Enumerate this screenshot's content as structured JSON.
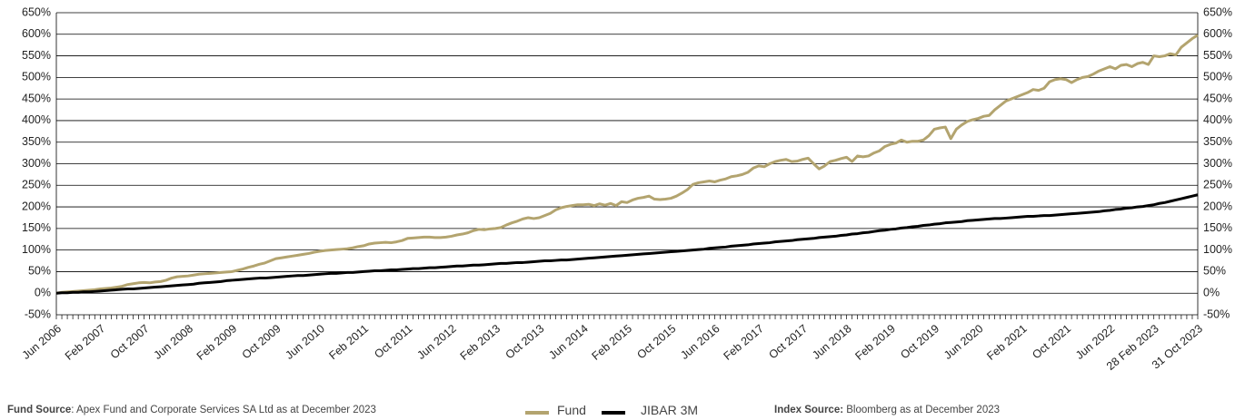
{
  "chart_data": {
    "type": "line",
    "categories": [
      "Jun 2006",
      null,
      null,
      null,
      null,
      null,
      null,
      null,
      "Feb 2007",
      null,
      null,
      null,
      null,
      null,
      null,
      null,
      "Oct 2007",
      null,
      null,
      null,
      null,
      null,
      null,
      null,
      "Jun 2008",
      null,
      null,
      null,
      null,
      null,
      null,
      null,
      "Feb 2009",
      null,
      null,
      null,
      null,
      null,
      null,
      null,
      "Oct 2009",
      null,
      null,
      null,
      null,
      null,
      null,
      null,
      "Jun 2010",
      null,
      null,
      null,
      null,
      null,
      null,
      null,
      "Feb 2011",
      null,
      null,
      null,
      null,
      null,
      null,
      null,
      "Oct 2011",
      null,
      null,
      null,
      null,
      null,
      null,
      null,
      "Jun 2012",
      null,
      null,
      null,
      null,
      null,
      null,
      null,
      "Feb 2013",
      null,
      null,
      null,
      null,
      null,
      null,
      null,
      "Oct 2013",
      null,
      null,
      null,
      null,
      null,
      null,
      null,
      "Jun 2014",
      null,
      null,
      null,
      null,
      null,
      null,
      null,
      "Feb 2015",
      null,
      null,
      null,
      null,
      null,
      null,
      null,
      "Oct 2015",
      null,
      null,
      null,
      null,
      null,
      null,
      null,
      "Jun 2016",
      null,
      null,
      null,
      null,
      null,
      null,
      null,
      "Feb 2017",
      null,
      null,
      null,
      null,
      null,
      null,
      null,
      "Oct 2017",
      null,
      null,
      null,
      null,
      null,
      null,
      null,
      "Jun 2018",
      null,
      null,
      null,
      null,
      null,
      null,
      null,
      "Feb 2019",
      null,
      null,
      null,
      null,
      null,
      null,
      null,
      "Oct 2019",
      null,
      null,
      null,
      null,
      null,
      null,
      null,
      "Jun 2020",
      null,
      null,
      null,
      null,
      null,
      null,
      null,
      "Feb 2021",
      null,
      null,
      null,
      null,
      null,
      null,
      null,
      "Oct 2021",
      null,
      null,
      null,
      null,
      null,
      null,
      null,
      "Jun 2022",
      null,
      null,
      null,
      null,
      null,
      null,
      null,
      "28 Feb 2023",
      null,
      null,
      null,
      null,
      null,
      null,
      null,
      "31 Oct 2023"
    ],
    "series": [
      {
        "name": "Fund",
        "color": "#b3a46f",
        "values": [
          0,
          2,
          3,
          4,
          5,
          6,
          7,
          8,
          10,
          11,
          12,
          14,
          16,
          20,
          22,
          24,
          25,
          24,
          26,
          27,
          30,
          35,
          38,
          39,
          40,
          42,
          44,
          45,
          46,
          47,
          48,
          49,
          50,
          53,
          56,
          60,
          63,
          67,
          70,
          75,
          80,
          82,
          84,
          86,
          88,
          90,
          92,
          95,
          97,
          99,
          100,
          101,
          102,
          103,
          105,
          108,
          110,
          114,
          116,
          117,
          118,
          117,
          119,
          122,
          127,
          128,
          129,
          130,
          130,
          129,
          129,
          130,
          132,
          135,
          137,
          140,
          145,
          148,
          147,
          149,
          150,
          152,
          158,
          163,
          167,
          172,
          175,
          173,
          175,
          180,
          185,
          193,
          198,
          201,
          203,
          205,
          205,
          206,
          203,
          207,
          204,
          208,
          203,
          212,
          210,
          216,
          220,
          222,
          225,
          218,
          217,
          218,
          220,
          225,
          232,
          240,
          252,
          256,
          258,
          260,
          258,
          262,
          265,
          270,
          272,
          275,
          280,
          290,
          295,
          293,
          300,
          305,
          308,
          310,
          305,
          306,
          310,
          313,
          300,
          288,
          295,
          305,
          308,
          312,
          315,
          305,
          318,
          316,
          318,
          325,
          330,
          340,
          345,
          348,
          355,
          350,
          352,
          352,
          355,
          365,
          380,
          383,
          385,
          358,
          380,
          390,
          398,
          402,
          405,
          410,
          412,
          425,
          435,
          445,
          450,
          455,
          460,
          465,
          472,
          470,
          475,
          490,
          495,
          497,
          495,
          488,
          495,
          500,
          502,
          508,
          515,
          520,
          525,
          520,
          528,
          530,
          525,
          532,
          535,
          530,
          550,
          548,
          550,
          555,
          552,
          570,
          580,
          590,
          598
        ]
      },
      {
        "name": "JIBAR 3M",
        "color": "#000000",
        "values": [
          0,
          1,
          1,
          2,
          2,
          3,
          3,
          4,
          5,
          6,
          7,
          8,
          9,
          10,
          10,
          11,
          12,
          13,
          14,
          15,
          16,
          17,
          18,
          19,
          20,
          21,
          23,
          24,
          25,
          26,
          27,
          29,
          30,
          31,
          32,
          33,
          34,
          35,
          35,
          36,
          37,
          38,
          39,
          40,
          41,
          41,
          42,
          43,
          44,
          45,
          46,
          46,
          47,
          48,
          48,
          49,
          50,
          51,
          52,
          52,
          53,
          54,
          54,
          55,
          56,
          57,
          57,
          58,
          59,
          59,
          60,
          61,
          62,
          63,
          63,
          64,
          65,
          65,
          66,
          67,
          68,
          69,
          69,
          70,
          71,
          71,
          72,
          73,
          74,
          75,
          75,
          76,
          77,
          77,
          78,
          79,
          80,
          81,
          82,
          83,
          84,
          85,
          86,
          87,
          88,
          89,
          90,
          91,
          92,
          93,
          94,
          95,
          96,
          97,
          98,
          99,
          100,
          101,
          102,
          104,
          105,
          106,
          107,
          109,
          110,
          111,
          112,
          114,
          115,
          116,
          117,
          119,
          120,
          121,
          122,
          124,
          125,
          126,
          127,
          129,
          130,
          131,
          132,
          134,
          135,
          137,
          138,
          140,
          141,
          143,
          145,
          146,
          148,
          149,
          151,
          152,
          154,
          155,
          157,
          158,
          160,
          161,
          163,
          164,
          165,
          166,
          168,
          169,
          170,
          171,
          172,
          173,
          173,
          174,
          175,
          176,
          177,
          178,
          178,
          179,
          180,
          180,
          181,
          182,
          183,
          184,
          185,
          186,
          187,
          188,
          189,
          191,
          192,
          194,
          195,
          197,
          198,
          200,
          201,
          203,
          205,
          208,
          210,
          213,
          216,
          219,
          222,
          225,
          228
        ]
      }
    ],
    "ylim": [
      -50,
      650
    ],
    "yticks": [
      {
        "value": -50,
        "label": "-50%"
      },
      {
        "value": 0,
        "label": "0%"
      },
      {
        "value": 50,
        "label": "50%"
      },
      {
        "value": 100,
        "label": "100%"
      },
      {
        "value": 150,
        "label": "150%"
      },
      {
        "value": 200,
        "label": "200%"
      },
      {
        "value": 250,
        "label": "250%"
      },
      {
        "value": 300,
        "label": "300%"
      },
      {
        "value": 350,
        "label": "350%"
      },
      {
        "value": 400,
        "label": "400%"
      },
      {
        "value": 450,
        "label": "450%"
      },
      {
        "value": 500,
        "label": "500%"
      },
      {
        "value": 550,
        "label": "550%"
      },
      {
        "value": 600,
        "label": "600%"
      },
      {
        "value": 650,
        "label": "650%"
      }
    ],
    "y2lim": [
      -50,
      650
    ],
    "y2ticks": [
      {
        "value": -50,
        "label": "-50%"
      },
      {
        "value": 0,
        "label": "0%"
      },
      {
        "value": 50,
        "label": "50%"
      },
      {
        "value": 100,
        "label": "100%"
      },
      {
        "value": 150,
        "label": "150%"
      },
      {
        "value": 200,
        "label": "200%"
      },
      {
        "value": 250,
        "label": "250%"
      },
      {
        "value": 300,
        "label": "300%"
      },
      {
        "value": 350,
        "label": "350%"
      },
      {
        "value": 400,
        "label": "400%"
      },
      {
        "value": 450,
        "label": "450%"
      },
      {
        "value": 500,
        "label": "500%"
      },
      {
        "value": 550,
        "label": "550%"
      },
      {
        "value": 600,
        "label": "600%"
      },
      {
        "value": 650,
        "label": "650%"
      }
    ],
    "grid": true
  },
  "footer": {
    "fund_source": {
      "label": "Fund Source",
      "text": ": Apex Fund and Corporate Services SA Ltd as at December 2023"
    },
    "index_source": {
      "label": "Index Source:",
      "text": " Bloomberg as at December 2023"
    }
  }
}
